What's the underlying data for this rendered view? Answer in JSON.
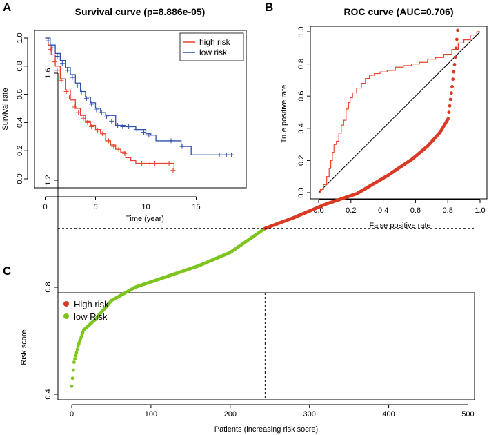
{
  "chart_data": [
    {
      "panel": "A",
      "type": "line",
      "subtype": "kaplan-meier",
      "title": "Survival curve (p=8.886e-05)",
      "xlabel": "Time (year)",
      "ylabel": "Survival rate",
      "xlim": [
        0,
        19
      ],
      "ylim": [
        0,
        1
      ],
      "xticks": [
        "0",
        "5",
        "10",
        "15"
      ],
      "yticks": [
        "0.0",
        "0.2",
        "0.4",
        "0.6",
        "0.8",
        "1.0"
      ],
      "legend_position": "top-right",
      "series": [
        {
          "name": "high risk",
          "color": "#e8402a",
          "x": [
            0,
            0.3,
            0.6,
            1.0,
            1.5,
            2.0,
            2.5,
            3.0,
            3.5,
            4.0,
            4.5,
            5.0,
            5.5,
            6.0,
            6.5,
            7.0,
            7.5,
            8.0,
            8.5,
            9.0,
            10.0,
            11.0,
            12.0,
            12.8
          ],
          "y": [
            1.0,
            0.95,
            0.88,
            0.8,
            0.71,
            0.63,
            0.56,
            0.5,
            0.45,
            0.41,
            0.38,
            0.35,
            0.32,
            0.27,
            0.24,
            0.21,
            0.19,
            0.15,
            0.13,
            0.11,
            0.11,
            0.11,
            0.11,
            0.06
          ],
          "censor_x": [
            0.5,
            0.9,
            1.2,
            1.6,
            2.1,
            2.4,
            2.9,
            3.3,
            3.8,
            4.2,
            4.6,
            5.2,
            5.7,
            6.3,
            6.8,
            7.3,
            7.9,
            9.6,
            10.4,
            10.9,
            11.3,
            12.3,
            12.7
          ],
          "censor_y": [
            0.92,
            0.83,
            0.77,
            0.7,
            0.62,
            0.58,
            0.51,
            0.47,
            0.43,
            0.4,
            0.37,
            0.34,
            0.32,
            0.27,
            0.23,
            0.21,
            0.18,
            0.11,
            0.11,
            0.11,
            0.11,
            0.11,
            0.06
          ]
        },
        {
          "name": "low risk",
          "color": "#2f4fad",
          "x": [
            0,
            0.5,
            1.0,
            1.5,
            2.0,
            2.5,
            3.0,
            3.5,
            4.0,
            4.5,
            5.0,
            5.5,
            6.0,
            7.0,
            8.0,
            9.0,
            10.0,
            10.5,
            11.0,
            12.0,
            13.0,
            13.5,
            14.5,
            15.0,
            16.0,
            17.0,
            18.0,
            18.7
          ],
          "y": [
            1.0,
            0.95,
            0.89,
            0.84,
            0.79,
            0.74,
            0.68,
            0.62,
            0.58,
            0.54,
            0.5,
            0.47,
            0.45,
            0.38,
            0.37,
            0.35,
            0.32,
            0.31,
            0.27,
            0.27,
            0.27,
            0.23,
            0.17,
            0.17,
            0.17,
            0.17,
            0.17,
            0.17
          ],
          "censor_x": [
            0.3,
            0.7,
            1.2,
            1.7,
            2.2,
            2.7,
            3.2,
            3.6,
            4.1,
            4.6,
            5.1,
            5.6,
            6.1,
            6.6,
            7.2,
            7.7,
            8.3,
            9.1,
            9.8,
            10.3,
            12.5,
            13.6,
            17.3,
            18.0,
            18.5
          ],
          "censor_y": [
            0.98,
            0.93,
            0.87,
            0.82,
            0.77,
            0.72,
            0.66,
            0.61,
            0.57,
            0.53,
            0.49,
            0.47,
            0.44,
            0.41,
            0.38,
            0.37,
            0.37,
            0.35,
            0.33,
            0.31,
            0.27,
            0.23,
            0.17,
            0.17,
            0.17
          ]
        }
      ]
    },
    {
      "panel": "B",
      "type": "line",
      "subtype": "roc",
      "title": "ROC curve (AUC=0.706)",
      "xlabel": "False positive rate",
      "ylabel": "True positive rate",
      "xlim": [
        0,
        1
      ],
      "ylim": [
        0,
        1
      ],
      "xticks": [
        "0.0",
        "0.2",
        "0.4",
        "0.6",
        "0.8",
        "1.0"
      ],
      "yticks": [
        "0.0",
        "0.2",
        "0.4",
        "0.6",
        "0.8",
        "1.0"
      ],
      "series": [
        {
          "name": "ROC",
          "color": "#e8402a",
          "x": [
            0,
            0.02,
            0.04,
            0.06,
            0.07,
            0.08,
            0.09,
            0.1,
            0.12,
            0.13,
            0.15,
            0.16,
            0.18,
            0.19,
            0.2,
            0.22,
            0.25,
            0.28,
            0.3,
            0.33,
            0.36,
            0.4,
            0.45,
            0.5,
            0.55,
            0.6,
            0.65,
            0.7,
            0.75,
            0.8,
            0.85,
            0.88,
            0.92,
            0.96,
            1.0
          ],
          "y": [
            0,
            0.02,
            0.05,
            0.1,
            0.15,
            0.2,
            0.25,
            0.3,
            0.32,
            0.37,
            0.42,
            0.45,
            0.52,
            0.56,
            0.59,
            0.62,
            0.65,
            0.68,
            0.71,
            0.73,
            0.74,
            0.75,
            0.76,
            0.78,
            0.79,
            0.8,
            0.81,
            0.83,
            0.84,
            0.86,
            0.89,
            0.93,
            0.95,
            0.98,
            1.0
          ]
        },
        {
          "name": "chance",
          "color": "#000000",
          "x": [
            0,
            1
          ],
          "y": [
            0,
            1
          ]
        }
      ]
    },
    {
      "panel": "C",
      "type": "scatter",
      "xlabel": "Patients (increasing risk socre)",
      "ylabel": "Risk score",
      "xlim": [
        -12,
        500
      ],
      "ylim": [
        0.36,
        1.82
      ],
      "xticks": [
        "0",
        "100",
        "200",
        "300",
        "400",
        "500"
      ],
      "yticks": [
        "0.4",
        "0.8",
        "1.2",
        "1.6"
      ],
      "n_patients": 488,
      "cutoff_index": 244,
      "cutoff_value": 1.02,
      "curve_knots_x": [
        0,
        3,
        8,
        15,
        30,
        50,
        80,
        120,
        160,
        200,
        244,
        280,
        320,
        360,
        400,
        430,
        450,
        465,
        475,
        480,
        484,
        487
      ],
      "curve_knots_y": [
        0.43,
        0.52,
        0.58,
        0.64,
        0.68,
        0.75,
        0.8,
        0.84,
        0.88,
        0.93,
        1.02,
        1.06,
        1.11,
        1.15,
        1.22,
        1.28,
        1.33,
        1.38,
        1.43,
        1.55,
        1.66,
        1.76
      ],
      "legend_position": "top-left",
      "series": [
        {
          "name": "High risk",
          "color": "#d93a24"
        },
        {
          "name": "low Risk",
          "color": "#7dc41f"
        }
      ]
    }
  ],
  "panel_labels": [
    "A",
    "B",
    "C"
  ]
}
